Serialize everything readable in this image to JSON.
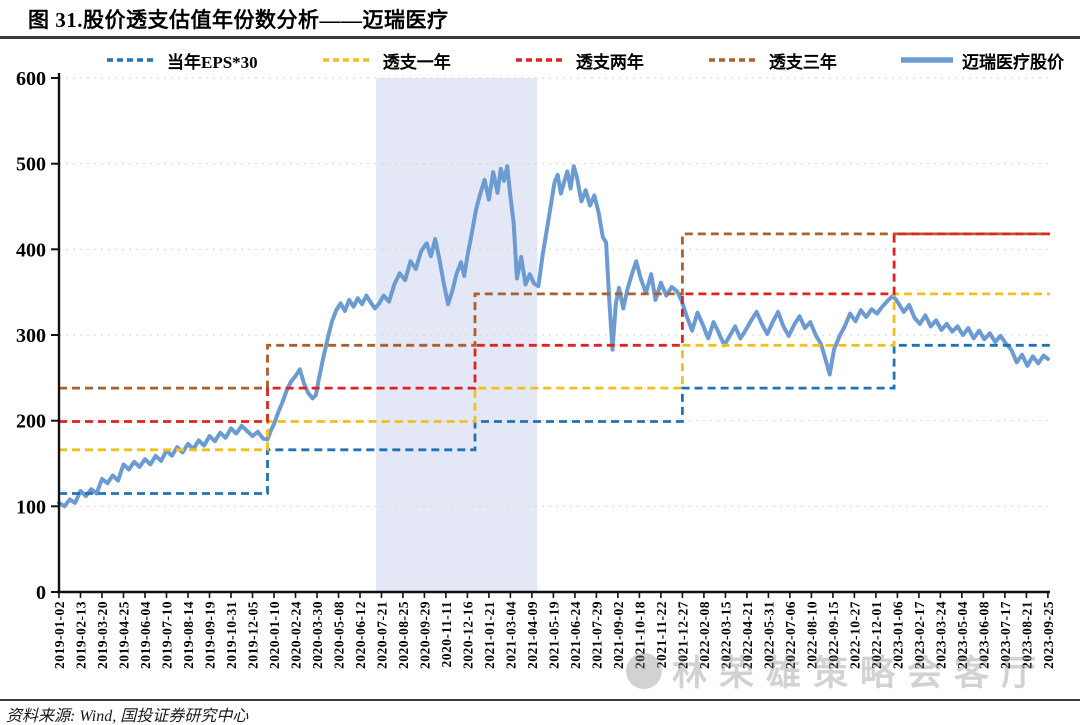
{
  "page": {
    "title": "图 31.股价透支估值年份数分析——迈瑞医疗",
    "source_note": "资料来源: Wind, 国投证券研究中心",
    "watermark_text": "林荣雄策略会客厅"
  },
  "chart_data": {
    "type": "line",
    "title": "股价透支估值年份数分析——迈瑞医疗",
    "ylim": [
      0,
      600
    ],
    "yticks": [
      0,
      100,
      200,
      300,
      400,
      500,
      600
    ],
    "grid": "horizontal-dashed",
    "legend_position": "top",
    "colors": {
      "grid": "#D9D9D9",
      "axis": "#111111",
      "highlight_band": "#E4E7F5"
    },
    "x_labels": [
      "2019-01-02",
      "2019-02-13",
      "2019-03-20",
      "2019-04-25",
      "2019-06-04",
      "2019-07-10",
      "2019-08-14",
      "2019-09-19",
      "2019-10-31",
      "2019-12-05",
      "2020-01-10",
      "2020-02-24",
      "2020-03-30",
      "2020-05-08",
      "2020-06-12",
      "2020-07-21",
      "2020-08-25",
      "2020-09-29",
      "2020-11-11",
      "2020-12-16",
      "2021-01-21",
      "2021-03-04",
      "2021-04-09",
      "2021-05-19",
      "2021-06-24",
      "2021-07-29",
      "2021-09-02",
      "2021-10-18",
      "2021-11-22",
      "2021-12-27",
      "2022-02-08",
      "2022-03-15",
      "2022-04-21",
      "2022-05-31",
      "2022-07-06",
      "2022-08-10",
      "2022-09-15",
      "2022-10-27",
      "2022-12-01",
      "2023-01-06",
      "2023-02-17",
      "2023-03-24",
      "2023-05-04",
      "2023-06-08",
      "2023-07-17",
      "2023-08-21",
      "2023-09-25"
    ],
    "highlight_region": {
      "from_index": 14.75,
      "to_index": 22.25
    },
    "year_step_breaks_index": [
      0,
      9.7,
      19.35,
      29.0,
      38.85,
      46.1
    ],
    "step_series": [
      {
        "name": "当年EPS*30",
        "color": "#2273B6",
        "line_style": "dashed",
        "values_by_year": {
          "2019": 115,
          "2020": 166,
          "2021": 199,
          "2022": 238,
          "2023": 288
        }
      },
      {
        "name": "透支一年",
        "color": "#F0C01F",
        "line_style": "dashed",
        "values_by_year": {
          "2019": 166,
          "2020": 199,
          "2021": 238,
          "2022": 288,
          "2023": 348
        }
      },
      {
        "name": "透支两年",
        "color": "#E02222",
        "line_style": "dashed",
        "values_by_year": {
          "2019": 199,
          "2020": 238,
          "2021": 288,
          "2022": 348,
          "2023": 418
        }
      },
      {
        "name": "透支三年",
        "color": "#A9612F",
        "line_style": "dashed",
        "values_by_year": {
          "2019": 238,
          "2020": 288,
          "2021": 348,
          "2022": 418,
          "2023": 418
        }
      }
    ],
    "price_series": {
      "name": "迈瑞医疗股价",
      "color": "#6C9BD2",
      "points": [
        [
          0,
          104
        ],
        [
          0.25,
          100
        ],
        [
          0.5,
          108
        ],
        [
          0.75,
          104
        ],
        [
          1,
          118
        ],
        [
          1.25,
          112
        ],
        [
          1.5,
          120
        ],
        [
          1.75,
          115
        ],
        [
          2,
          132
        ],
        [
          2.25,
          127
        ],
        [
          2.5,
          136
        ],
        [
          2.75,
          130
        ],
        [
          3,
          149
        ],
        [
          3.25,
          143
        ],
        [
          3.5,
          152
        ],
        [
          3.75,
          146
        ],
        [
          4,
          155
        ],
        [
          4.25,
          149
        ],
        [
          4.5,
          159
        ],
        [
          4.75,
          153
        ],
        [
          5,
          165
        ],
        [
          5.25,
          159
        ],
        [
          5.5,
          169
        ],
        [
          5.75,
          163
        ],
        [
          6,
          173
        ],
        [
          6.25,
          167
        ],
        [
          6.5,
          177
        ],
        [
          6.75,
          171
        ],
        [
          7,
          182
        ],
        [
          7.25,
          176
        ],
        [
          7.5,
          186
        ],
        [
          7.75,
          180
        ],
        [
          8,
          191
        ],
        [
          8.25,
          185
        ],
        [
          8.5,
          194
        ],
        [
          8.75,
          188
        ],
        [
          9,
          182
        ],
        [
          9.25,
          187
        ],
        [
          9.5,
          179
        ],
        [
          9.7,
          178
        ],
        [
          9.85,
          188
        ],
        [
          10,
          196
        ],
        [
          10.2,
          210
        ],
        [
          10.4,
          222
        ],
        [
          10.6,
          236
        ],
        [
          10.8,
          246
        ],
        [
          11,
          252
        ],
        [
          11.2,
          260
        ],
        [
          11.4,
          243
        ],
        [
          11.6,
          232
        ],
        [
          11.8,
          226
        ],
        [
          11.95,
          230
        ],
        [
          12.1,
          250
        ],
        [
          12.3,
          274
        ],
        [
          12.5,
          296
        ],
        [
          12.7,
          316
        ],
        [
          12.9,
          329
        ],
        [
          13.1,
          337
        ],
        [
          13.3,
          328
        ],
        [
          13.5,
          341
        ],
        [
          13.7,
          333
        ],
        [
          13.9,
          343
        ],
        [
          14.1,
          336
        ],
        [
          14.3,
          346
        ],
        [
          14.5,
          338
        ],
        [
          14.7,
          331
        ],
        [
          14.9,
          337
        ],
        [
          15.1,
          346
        ],
        [
          15.35,
          339
        ],
        [
          15.6,
          359
        ],
        [
          15.85,
          372
        ],
        [
          16.1,
          364
        ],
        [
          16.35,
          386
        ],
        [
          16.6,
          377
        ],
        [
          16.85,
          398
        ],
        [
          17.1,
          407
        ],
        [
          17.3,
          392
        ],
        [
          17.5,
          412
        ],
        [
          17.7,
          388
        ],
        [
          17.9,
          360
        ],
        [
          18.1,
          336
        ],
        [
          18.3,
          352
        ],
        [
          18.5,
          372
        ],
        [
          18.7,
          385
        ],
        [
          18.85,
          369
        ],
        [
          19,
          392
        ],
        [
          19.2,
          418
        ],
        [
          19.4,
          446
        ],
        [
          19.6,
          465
        ],
        [
          19.8,
          481
        ],
        [
          20,
          458
        ],
        [
          20.2,
          490
        ],
        [
          20.4,
          466
        ],
        [
          20.55,
          494
        ],
        [
          20.7,
          480
        ],
        [
          20.85,
          497
        ],
        [
          21,
          462
        ],
        [
          21.15,
          430
        ],
        [
          21.3,
          366
        ],
        [
          21.5,
          391
        ],
        [
          21.7,
          359
        ],
        [
          21.9,
          371
        ],
        [
          22.1,
          360
        ],
        [
          22.3,
          357
        ],
        [
          22.5,
          394
        ],
        [
          22.7,
          424
        ],
        [
          22.9,
          455
        ],
        [
          23.05,
          478
        ],
        [
          23.2,
          487
        ],
        [
          23.35,
          465
        ],
        [
          23.5,
          479
        ],
        [
          23.65,
          491
        ],
        [
          23.8,
          471
        ],
        [
          23.95,
          497
        ],
        [
          24.1,
          483
        ],
        [
          24.3,
          456
        ],
        [
          24.5,
          469
        ],
        [
          24.7,
          451
        ],
        [
          24.9,
          463
        ],
        [
          25.1,
          443
        ],
        [
          25.3,
          414
        ],
        [
          25.45,
          408
        ],
        [
          25.6,
          340
        ],
        [
          25.75,
          283
        ],
        [
          25.9,
          336
        ],
        [
          26.05,
          355
        ],
        [
          26.25,
          331
        ],
        [
          26.45,
          354
        ],
        [
          26.65,
          371
        ],
        [
          26.85,
          386
        ],
        [
          27.05,
          367
        ],
        [
          27.3,
          349
        ],
        [
          27.55,
          371
        ],
        [
          27.75,
          341
        ],
        [
          28,
          361
        ],
        [
          28.25,
          346
        ],
        [
          28.5,
          356
        ],
        [
          28.75,
          351
        ],
        [
          28.95,
          341
        ],
        [
          29.2,
          322
        ],
        [
          29.45,
          305
        ],
        [
          29.7,
          326
        ],
        [
          29.95,
          312
        ],
        [
          30.2,
          296
        ],
        [
          30.45,
          315
        ],
        [
          30.7,
          302
        ],
        [
          30.95,
          288
        ],
        [
          31.2,
          299
        ],
        [
          31.45,
          310
        ],
        [
          31.7,
          296
        ],
        [
          31.95,
          306
        ],
        [
          32.2,
          317
        ],
        [
          32.45,
          327
        ],
        [
          32.7,
          313
        ],
        [
          32.95,
          301
        ],
        [
          33.2,
          315
        ],
        [
          33.45,
          327
        ],
        [
          33.7,
          310
        ],
        [
          33.95,
          299
        ],
        [
          34.2,
          312
        ],
        [
          34.45,
          322
        ],
        [
          34.7,
          308
        ],
        [
          34.95,
          315
        ],
        [
          35.2,
          300
        ],
        [
          35.45,
          289
        ],
        [
          35.7,
          268
        ],
        [
          35.85,
          254
        ],
        [
          36.05,
          283
        ],
        [
          36.3,
          298
        ],
        [
          36.55,
          310
        ],
        [
          36.8,
          325
        ],
        [
          37.05,
          316
        ],
        [
          37.3,
          329
        ],
        [
          37.55,
          321
        ],
        [
          37.8,
          330
        ],
        [
          38.05,
          325
        ],
        [
          38.3,
          333
        ],
        [
          38.55,
          340
        ],
        [
          38.8,
          346
        ],
        [
          39.05,
          337
        ],
        [
          39.3,
          327
        ],
        [
          39.55,
          335
        ],
        [
          39.8,
          320
        ],
        [
          40.05,
          313
        ],
        [
          40.3,
          323
        ],
        [
          40.55,
          310
        ],
        [
          40.8,
          317
        ],
        [
          41.05,
          306
        ],
        [
          41.3,
          313
        ],
        [
          41.55,
          304
        ],
        [
          41.8,
          310
        ],
        [
          42.05,
          300
        ],
        [
          42.3,
          308
        ],
        [
          42.55,
          296
        ],
        [
          42.8,
          305
        ],
        [
          43.05,
          295
        ],
        [
          43.3,
          302
        ],
        [
          43.55,
          292
        ],
        [
          43.8,
          299
        ],
        [
          44.05,
          290
        ],
        [
          44.3,
          283
        ],
        [
          44.55,
          268
        ],
        [
          44.8,
          277
        ],
        [
          45.05,
          264
        ],
        [
          45.3,
          275
        ],
        [
          45.55,
          267
        ],
        [
          45.8,
          276
        ],
        [
          46,
          272
        ]
      ]
    }
  }
}
